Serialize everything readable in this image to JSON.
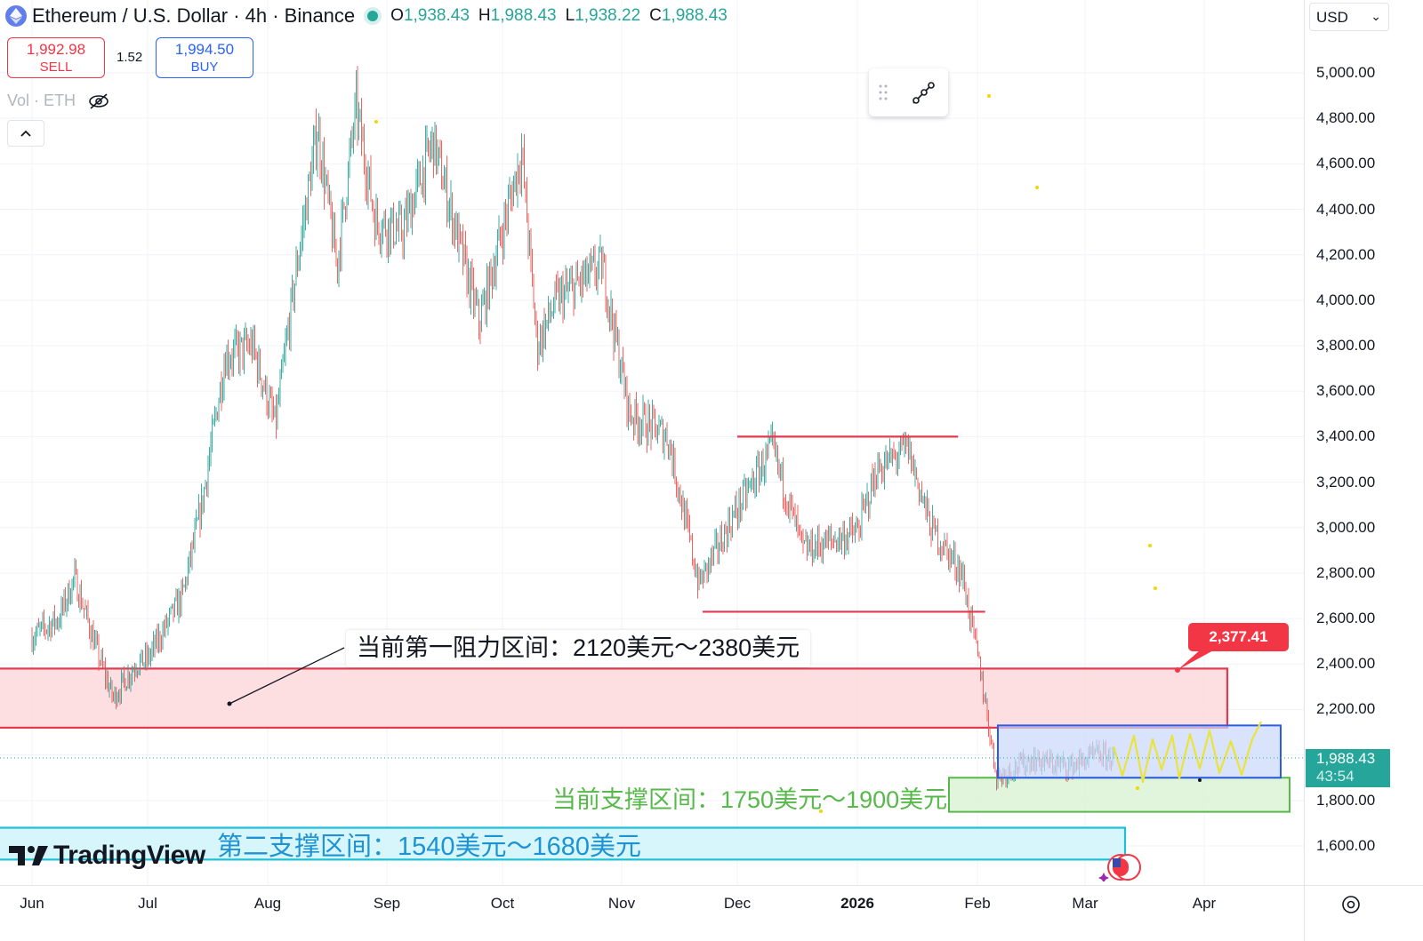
{
  "header": {
    "title": "Ethereum / U.S. Dollar · 4h · Binance",
    "ohlc": {
      "o_label": "O",
      "o": "1,938.43",
      "h_label": "H",
      "h": "1,988.43",
      "l_label": "L",
      "l": "1,938.22",
      "c_label": "C",
      "c": "1,988.43"
    }
  },
  "trade": {
    "sell_price": "1,992.98",
    "sell_label": "SELL",
    "spread": "1.52",
    "buy_price": "1,994.50",
    "buy_label": "BUY"
  },
  "volume_label": "Vol · ETH",
  "currency_select": "USD",
  "last_price": {
    "value": "1,988.43",
    "countdown": "43:54"
  },
  "callout_price": "2,377.41",
  "annotations": {
    "resistance": "当前第一阻力区间：2120美元～2380美元",
    "support1": "当前支撑区间：1750美元～1900美元",
    "support2": "第二支撑区间：1540美元～1680美元"
  },
  "watermark": "TradingView",
  "colors": {
    "up": "#26a69a",
    "down": "#ef5350",
    "resistance_fill": "#fdd8dc",
    "resistance_border": "#e53950",
    "support_fill": "#dbf3d5",
    "support_border": "#57b94a",
    "support2_fill": "#d0f4fa",
    "support2_border": "#1fbfd6",
    "range_box_fill": "#c9d8fb",
    "range_box_border": "#2b5be8"
  },
  "chart_data": {
    "type": "candlestick",
    "title": "Ethereum / U.S. Dollar · 4h · Binance",
    "xlabel": "",
    "ylabel": "",
    "x_ticks": [
      "Jun",
      "Jul",
      "Aug",
      "Sep",
      "Oct",
      "Nov",
      "Dec",
      "2026",
      "Feb",
      "Mar",
      "Apr"
    ],
    "y_ticks": [
      "1,600.00",
      "1,800.00",
      "2,000.00",
      "2,200.00",
      "2,400.00",
      "2,600.00",
      "2,800.00",
      "3,000.00",
      "3,200.00",
      "3,400.00",
      "3,600.00",
      "3,800.00",
      "4,000.00",
      "4,200.00",
      "4,400.00",
      "4,600.00",
      "4,800.00",
      "5,000.00"
    ],
    "ylim": [
      1420,
      5100
    ],
    "scale": "linear",
    "grid": true,
    "price_path": [
      {
        "date": "Jun 1",
        "close": 2520
      },
      {
        "date": "Jun 8",
        "close": 2600
      },
      {
        "date": "Jun 12",
        "close": 2780
      },
      {
        "date": "Jun 18",
        "close": 2450
      },
      {
        "date": "Jun 22",
        "close": 2250
      },
      {
        "date": "Jun 28",
        "close": 2400
      },
      {
        "date": "Jul 1",
        "close": 2420
      },
      {
        "date": "Jul 10",
        "close": 2700
      },
      {
        "date": "Jul 15",
        "close": 3100
      },
      {
        "date": "Jul 21",
        "close": 3750
      },
      {
        "date": "Jul 28",
        "close": 3800
      },
      {
        "date": "Aug 3",
        "close": 3450
      },
      {
        "date": "Aug 9",
        "close": 4200
      },
      {
        "date": "Aug 14",
        "close": 4750
      },
      {
        "date": "Aug 19",
        "close": 4150
      },
      {
        "date": "Aug 24",
        "close": 4850
      },
      {
        "date": "Aug 29",
        "close": 4350
      },
      {
        "date": "Sep 5",
        "close": 4300
      },
      {
        "date": "Sep 13",
        "close": 4700
      },
      {
        "date": "Sep 25",
        "close": 3900
      },
      {
        "date": "Oct 6",
        "close": 4650
      },
      {
        "date": "Oct 10",
        "close": 3800
      },
      {
        "date": "Oct 15",
        "close": 4000
      },
      {
        "date": "Oct 27",
        "close": 4150
      },
      {
        "date": "Nov 3",
        "close": 3500
      },
      {
        "date": "Nov 13",
        "close": 3400
      },
      {
        "date": "Nov 21",
        "close": 2750
      },
      {
        "date": "Nov 30",
        "close": 3050
      },
      {
        "date": "Dec 10",
        "close": 3350
      },
      {
        "date": "Dec 18",
        "close": 2900
      },
      {
        "date": "Jan 1",
        "close": 2980
      },
      {
        "date": "Jan 6",
        "close": 3250
      },
      {
        "date": "Jan 14",
        "close": 3350
      },
      {
        "date": "Jan 20",
        "close": 3000
      },
      {
        "date": "Jan 28",
        "close": 2800
      },
      {
        "date": "Feb 2",
        "close": 2350
      },
      {
        "date": "Feb 6",
        "close": 1900
      },
      {
        "date": "Feb 15",
        "close": 1980
      },
      {
        "date": "Feb 25",
        "close": 1950
      },
      {
        "date": "Mar 4",
        "close": 2000
      },
      {
        "date": "Mar 9",
        "close": 1988
      }
    ],
    "horizontal_lines": [
      {
        "price": 3400,
        "from": "Dec 1",
        "to": "Jan 27"
      },
      {
        "price": 2630,
        "from": "Nov 22",
        "to": "Feb 3"
      }
    ],
    "zones": [
      {
        "label": "当前第一阻力区间：2120美元～2380美元",
        "low": 2120,
        "high": 2380
      },
      {
        "label": "当前支撑区间：1750美元～1900美元",
        "low": 1750,
        "high": 1900
      },
      {
        "label": "第二支撑区间：1540美元～1680美元",
        "low": 1540,
        "high": 1680
      },
      {
        "label": "",
        "low": 1900,
        "high": 2130
      }
    ]
  }
}
